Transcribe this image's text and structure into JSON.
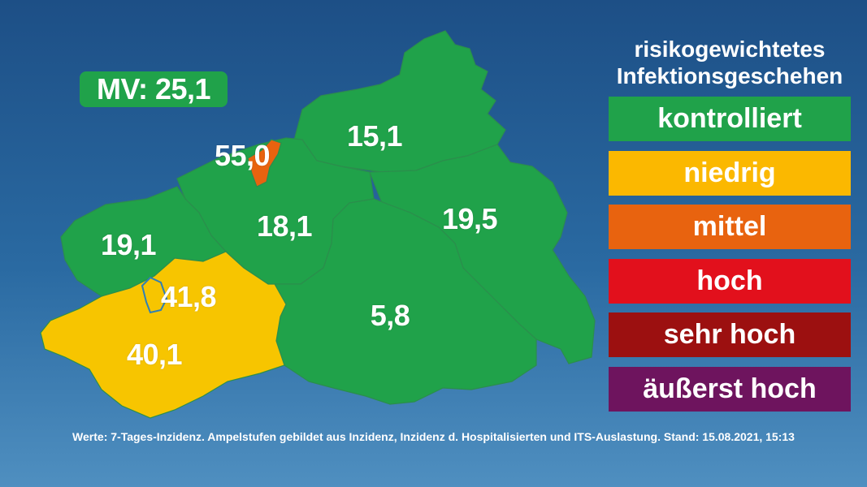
{
  "colors": {
    "kontrolliert": "#20a24a",
    "niedrig": "#fbb800",
    "mittel": "#e8630f",
    "hoch": "#e2101c",
    "sehr_hoch": "#9c1010",
    "aeusserst_hoch": "#6e145e",
    "map_yellow": "#f7c500"
  },
  "summary": {
    "label": "MV: 25,1"
  },
  "regions": [
    {
      "id": "vorpommern-ruegen",
      "value": "15,1",
      "level": "kontrolliert"
    },
    {
      "id": "rostock-stadt",
      "value": "55,0",
      "level": "mittel"
    },
    {
      "id": "landkreis-rostock",
      "value": "18,1",
      "level": "kontrolliert"
    },
    {
      "id": "vorpommern-greifswald",
      "value": "19,5",
      "level": "kontrolliert"
    },
    {
      "id": "nordwestmecklenburg",
      "value": "19,1",
      "level": "kontrolliert"
    },
    {
      "id": "schwerin",
      "value": "41,8",
      "level": "niedrig"
    },
    {
      "id": "ludwigslust-parchim",
      "value": "40,1",
      "level": "niedrig"
    },
    {
      "id": "mecklenburgische-seenplatte",
      "value": "5,8",
      "level": "kontrolliert"
    }
  ],
  "legend": {
    "title_line1": "risikogewichtetes",
    "title_line2": "Infektionsgeschehen",
    "items": [
      {
        "label": "kontrolliert",
        "color": "#20a24a"
      },
      {
        "label": "niedrig",
        "color": "#fbb800"
      },
      {
        "label": "mittel",
        "color": "#e8630f"
      },
      {
        "label": "hoch",
        "color": "#e2101c"
      },
      {
        "label": "sehr hoch",
        "color": "#9c1010"
      },
      {
        "label": "äußerst hoch",
        "color": "#6e145e"
      }
    ]
  },
  "footer": "Werte: 7-Tages-Inzidenz. Ampelstufen gebildet aus Inzidenz, Inzidenz d. Hospitalisierten und ITS-Auslastung. Stand: 15.08.2021, 15:13"
}
